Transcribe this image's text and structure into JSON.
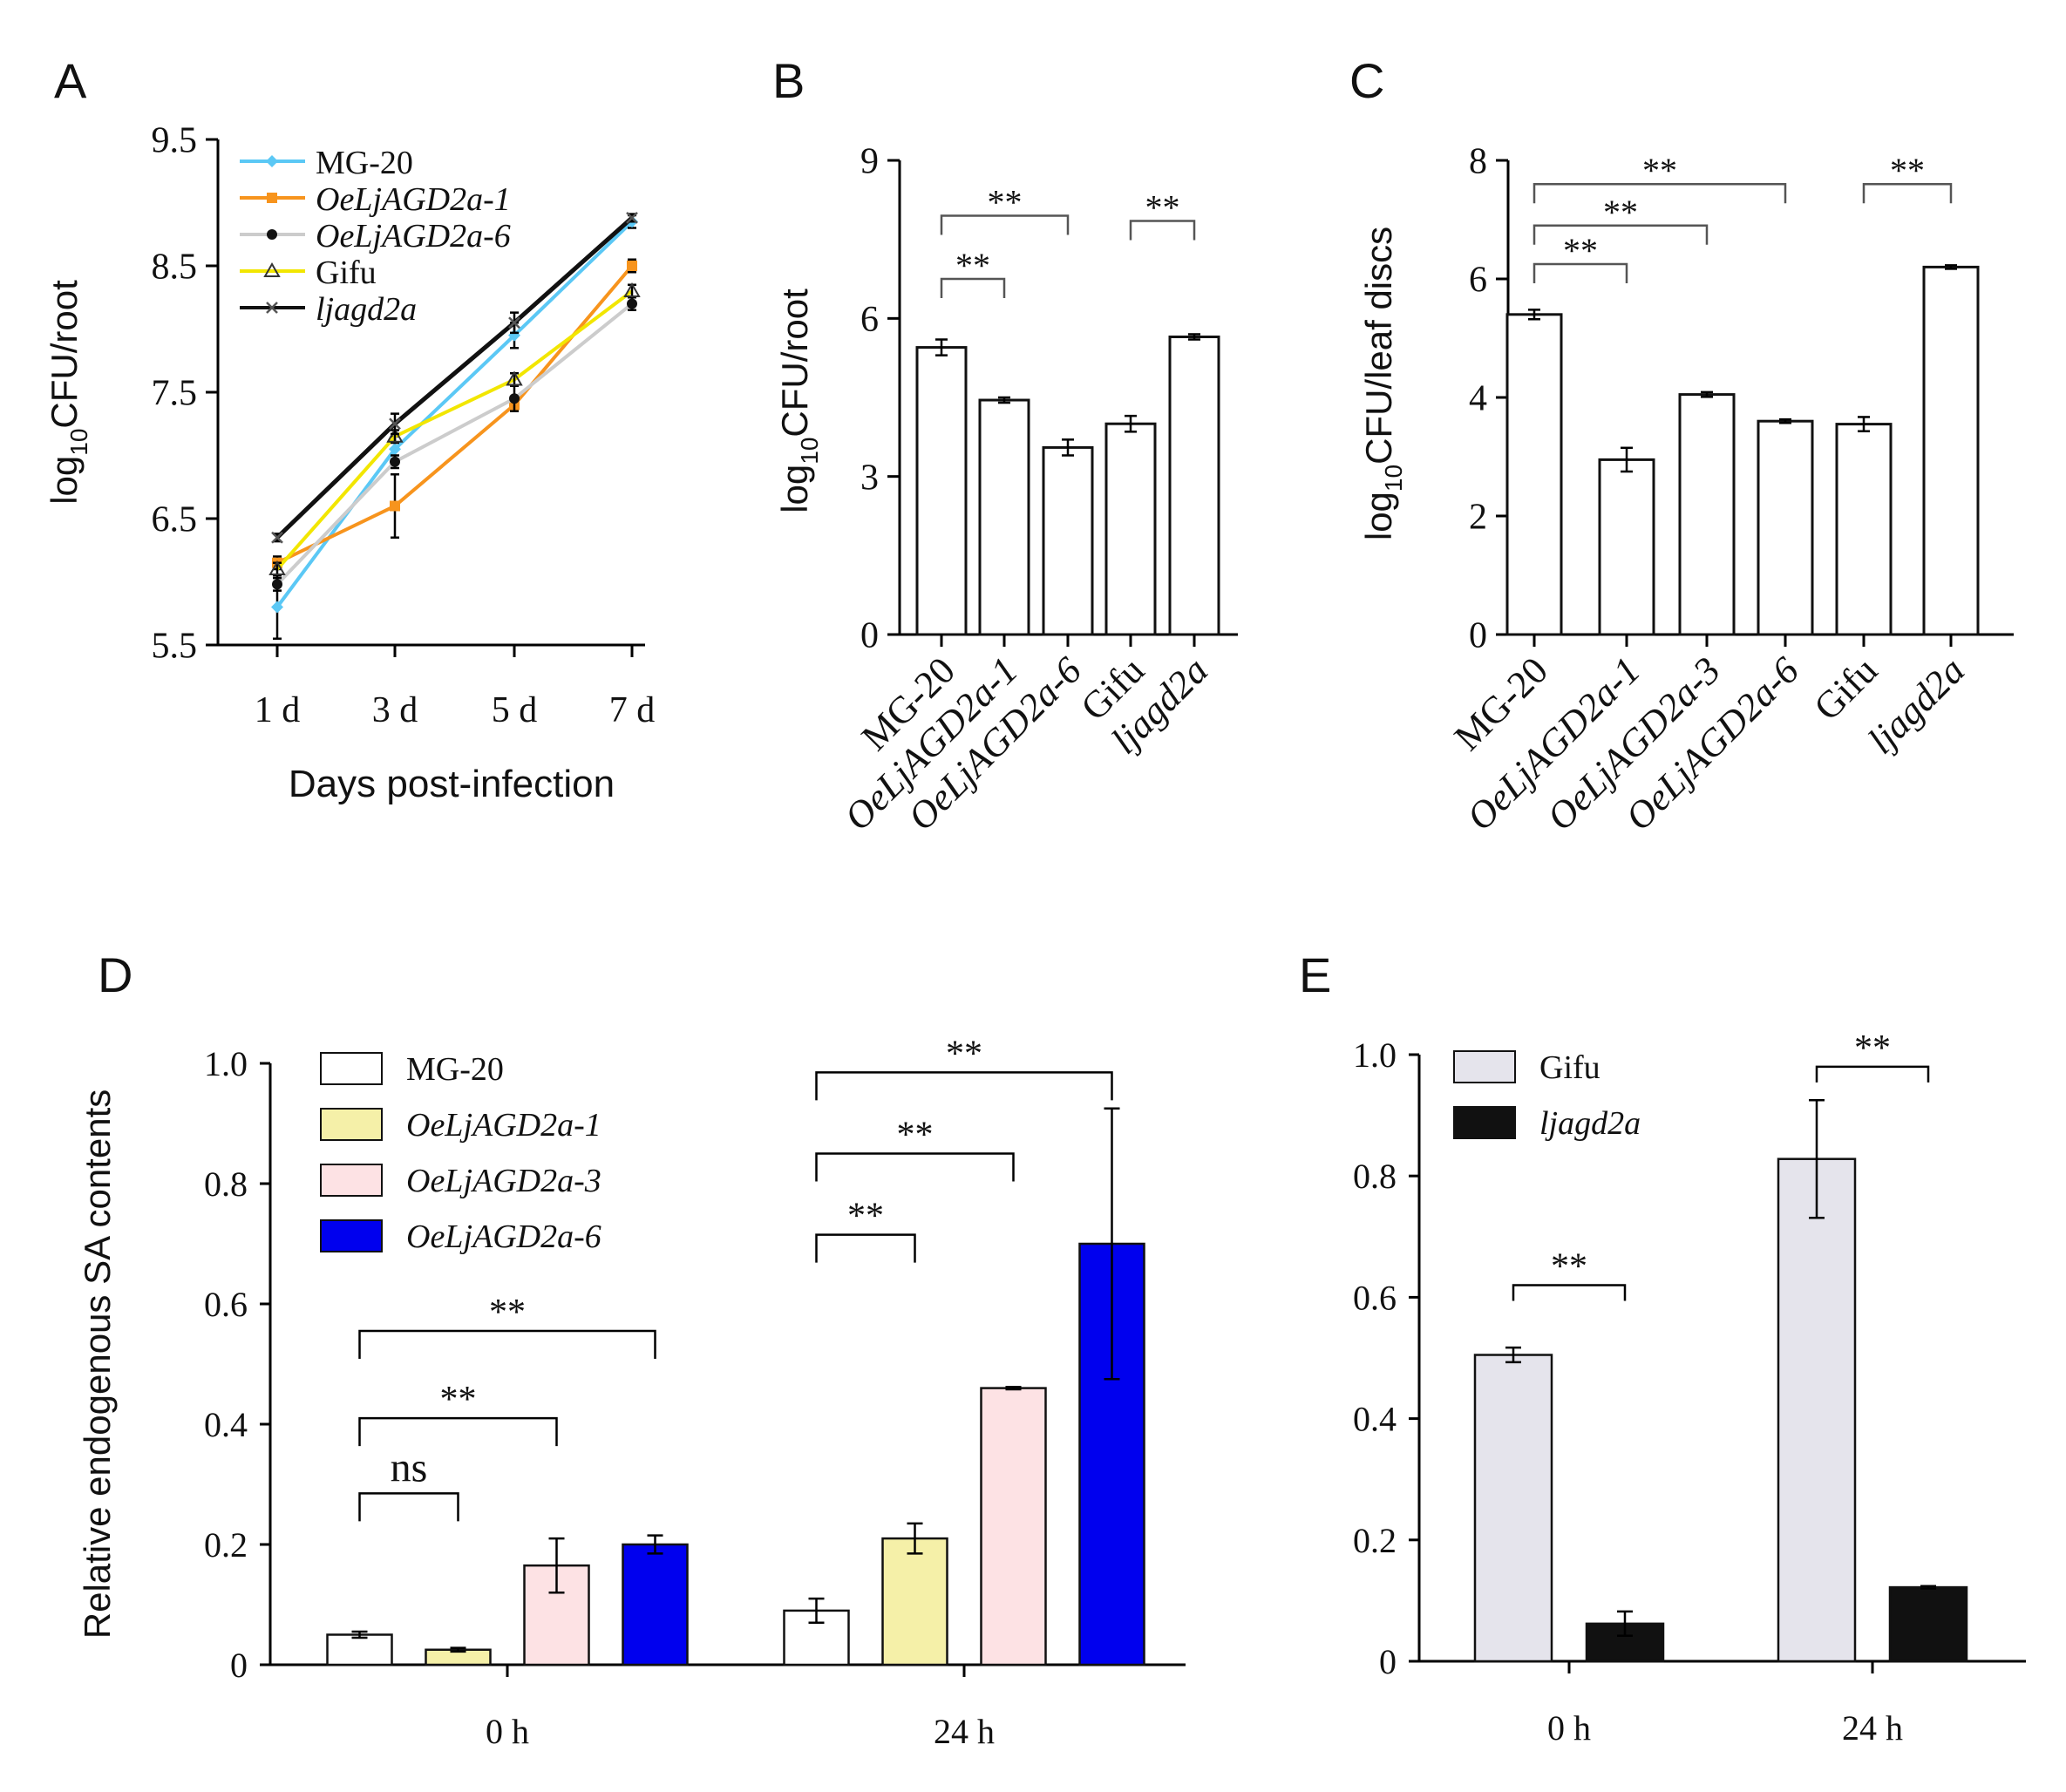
{
  "figure": {
    "panel_labels": [
      "A",
      "B",
      "C",
      "D",
      "E"
    ]
  },
  "chart_data": [
    {
      "panel": "A",
      "type": "line",
      "xlabel": "Days post-infection",
      "ylabel_prefix": "log",
      "ylabel_sub": "10",
      "ylabel_suffix": "CFU/root",
      "categories": [
        "1 d",
        "3 d",
        "5 d",
        "7 d"
      ],
      "ylim": [
        5.5,
        9.5
      ],
      "yticks": [
        "5.5",
        "6.5",
        "7.5",
        "8.5",
        "9.5"
      ],
      "ytick_values": [
        5.5,
        6.5,
        7.5,
        8.5,
        9.5
      ],
      "legend_position": "top-left",
      "series": [
        {
          "name": "MG-20",
          "italic": false,
          "color": "#5bc8f5",
          "marker": "diamond",
          "values": [
            5.8,
            7.05,
            7.95,
            8.85
          ],
          "err": [
            0.25,
            0.1,
            0.1,
            0.05
          ]
        },
        {
          "name": "OeLjAGD2a-1",
          "italic": true,
          "color": "#f7941d",
          "marker": "square",
          "values": [
            6.15,
            6.6,
            7.4,
            8.5
          ],
          "err": [
            0.05,
            0.25,
            0.05,
            0.05
          ]
        },
        {
          "name": "OeLjAGD2a-6",
          "italic": true,
          "color": "#cccccc",
          "marker": "dot",
          "values": [
            5.98,
            6.95,
            7.45,
            8.2
          ],
          "err": [
            0.05,
            0.05,
            0.1,
            0.05
          ]
        },
        {
          "name": "Gifu",
          "italic": false,
          "color": "#f2e600",
          "marker": "triangle",
          "values": [
            6.1,
            7.15,
            7.6,
            8.3
          ],
          "err": [
            0.05,
            0.05,
            0.05,
            0.05
          ]
        },
        {
          "name": "ljagd2a",
          "italic": true,
          "color": "#111111",
          "marker": "cross",
          "values": [
            6.35,
            7.25,
            8.05,
            8.88
          ],
          "err": [
            0.03,
            0.08,
            0.08,
            0.03
          ]
        }
      ]
    },
    {
      "panel": "B",
      "type": "bar",
      "ylabel_prefix": "log",
      "ylabel_sub": "10",
      "ylabel_suffix": "CFU/root",
      "categories": [
        "MG-20",
        "OeLjAGD2a-1",
        "OeLjAGD2a-6",
        "Gifu",
        "ljagd2a"
      ],
      "values": [
        5.45,
        4.45,
        3.55,
        4.0,
        5.65
      ],
      "err": [
        0.15,
        0.05,
        0.15,
        0.15,
        0.05
      ],
      "ylim": [
        0,
        9
      ],
      "yticks": [
        "0",
        "3",
        "6",
        "9"
      ],
      "ytick_values": [
        0,
        3,
        6,
        9
      ],
      "annotations": [
        {
          "text": "**",
          "from": 0,
          "to": 1,
          "level": 6.75
        },
        {
          "text": "**",
          "from": 0,
          "to": 2,
          "level": 7.95
        },
        {
          "text": "**",
          "from": 3,
          "to": 4,
          "level": 7.85
        }
      ]
    },
    {
      "panel": "C",
      "type": "bar",
      "ylabel_prefix": "log",
      "ylabel_sub": "10",
      "ylabel_suffix": "CFU/leaf discs",
      "categories": [
        "MG-20",
        "OeLjAGD2a-1",
        "OeLjAGD2a-3",
        "OeLjAGD2a-6",
        "Gifu",
        "ljagd2a"
      ],
      "values": [
        5.4,
        2.95,
        4.05,
        3.6,
        3.55,
        6.2
      ],
      "err": [
        0.08,
        0.2,
        0.04,
        0.03,
        0.12,
        0.03
      ],
      "ylim": [
        0,
        8
      ],
      "yticks": [
        "0",
        "2",
        "4",
        "6",
        "8"
      ],
      "ytick_values": [
        0,
        2,
        4,
        6,
        8
      ],
      "annotations": [
        {
          "text": "**",
          "from": 0,
          "to": 1,
          "level": 6.25
        },
        {
          "text": "**",
          "from": 0,
          "to": 2,
          "level": 6.9
        },
        {
          "text": "**",
          "from": 0,
          "to": 3,
          "level": 7.6
        },
        {
          "text": "**",
          "from": 4,
          "to": 5,
          "level": 7.6
        }
      ]
    },
    {
      "panel": "D",
      "type": "bar",
      "ylabel": "Relative endogenous SA contents",
      "categories": [
        "0 h",
        "24 h"
      ],
      "ylim": [
        0,
        1.0
      ],
      "yticks": [
        "0",
        "0.2",
        "0.4",
        "0.6",
        "0.8",
        "1.0"
      ],
      "ytick_values": [
        0,
        0.2,
        0.4,
        0.6,
        0.8,
        1.0
      ],
      "legend_position": "top-left",
      "series": [
        {
          "name": "MG-20",
          "italic": false,
          "color": "#ffffff",
          "values": [
            0.05,
            0.09
          ],
          "err": [
            0.005,
            0.02
          ]
        },
        {
          "name": "OeLjAGD2a-1",
          "italic": true,
          "color": "#f5f0a8",
          "values": [
            0.025,
            0.21
          ],
          "err": [
            0.003,
            0.025
          ]
        },
        {
          "name": "OeLjAGD2a-3",
          "italic": true,
          "color": "#fde2e4",
          "values": [
            0.165,
            0.46
          ],
          "err": [
            0.045,
            0.002
          ]
        },
        {
          "name": "OeLjAGD2a-6",
          "italic": true,
          "color": "#0000ee",
          "values": [
            0.2,
            0.7
          ],
          "err": [
            0.015,
            0.225
          ]
        }
      ],
      "annotations": [
        {
          "text": "ns",
          "group": 0,
          "from": 0,
          "to": 1,
          "level": 0.285
        },
        {
          "text": "**",
          "group": 0,
          "from": 0,
          "to": 2,
          "level": 0.41
        },
        {
          "text": "**",
          "group": 0,
          "from": 0,
          "to": 3,
          "level": 0.555
        },
        {
          "text": "**",
          "group": 1,
          "from": 0,
          "to": 1,
          "level": 0.715
        },
        {
          "text": "**",
          "group": 1,
          "from": 0,
          "to": 2,
          "level": 0.85
        },
        {
          "text": "**",
          "group": 1,
          "from": 0,
          "to": 3,
          "level": 0.985
        }
      ]
    },
    {
      "panel": "E",
      "type": "bar",
      "categories": [
        "0 h",
        "24 h"
      ],
      "ylim": [
        0,
        1.0
      ],
      "yticks": [
        "0",
        "0.2",
        "0.4",
        "0.6",
        "0.8",
        "1.0"
      ],
      "ytick_values": [
        0,
        0.2,
        0.4,
        0.6,
        0.8,
        1.0
      ],
      "legend_position": "top-left",
      "series": [
        {
          "name": "Gifu",
          "italic": false,
          "color": "#e5e4ec",
          "values": [
            0.505,
            0.828
          ],
          "err": [
            0.012,
            0.097
          ]
        },
        {
          "name": "ljagd2a",
          "italic": true,
          "color": "#111111",
          "values": [
            0.062,
            0.122
          ],
          "err": [
            0.02,
            0.002
          ]
        }
      ],
      "annotations": [
        {
          "text": "**",
          "group": 0,
          "from": 0,
          "to": 1,
          "level": 0.62
        },
        {
          "text": "**",
          "group": 1,
          "from": 0,
          "to": 1,
          "level": 0.98
        }
      ]
    }
  ]
}
